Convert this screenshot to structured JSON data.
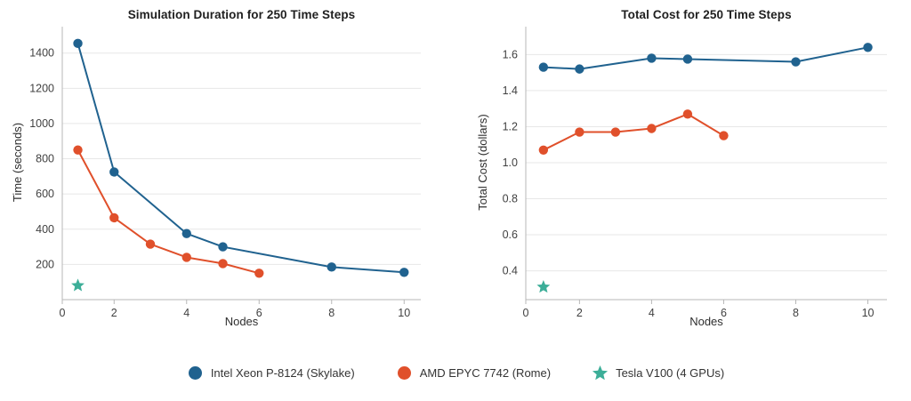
{
  "page": {
    "background": "#ffffff"
  },
  "chart_data": [
    {
      "type": "line",
      "title": "Simulation Duration for 250 Time Steps",
      "xlabel": "Nodes",
      "ylabel": "Time (seconds)",
      "xlim": [
        0.57,
        10.46
      ],
      "ylim": [
        0,
        1550
      ],
      "xticks": [
        0,
        2,
        4,
        6,
        8,
        10
      ],
      "yticks": [
        200,
        400,
        600,
        800,
        1000,
        1200,
        1400
      ],
      "ytick_decimals": 0,
      "grid": "horizontal",
      "legend_position": "bottom-center",
      "series": [
        {
          "name": "Intel Xeon P-8124 (Skylake)",
          "color": "#20628f",
          "marker": "circle",
          "line": true,
          "x": [
            1,
            2,
            4,
            5,
            8,
            10
          ],
          "y": [
            1455,
            725,
            375,
            300,
            185,
            155
          ]
        },
        {
          "name": "AMD EPYC 7742 (Rome)",
          "color": "#e0502b",
          "marker": "circle",
          "line": true,
          "x": [
            1,
            2,
            3,
            4,
            5,
            6
          ],
          "y": [
            850,
            465,
            315,
            240,
            205,
            150
          ]
        },
        {
          "name": "Tesla V100 (4 GPUs)",
          "color": "#3cae98",
          "marker": "star",
          "line": false,
          "x": [
            1
          ],
          "y": [
            80
          ]
        }
      ]
    },
    {
      "type": "line",
      "title": "Total Cost for 250 Time Steps",
      "xlabel": "Nodes",
      "ylabel": "Total Cost (dollars)",
      "xlim": [
        0.51,
        10.53
      ],
      "ylim": [
        0.24,
        1.755
      ],
      "xticks": [
        0,
        2,
        4,
        6,
        8,
        10
      ],
      "yticks": [
        0.4,
        0.6,
        0.8,
        1.0,
        1.2,
        1.4,
        1.6
      ],
      "ytick_decimals": 1,
      "grid": "horizontal",
      "legend_position": "bottom-center",
      "series": [
        {
          "name": "Intel Xeon P-8124 (Skylake)",
          "color": "#20628f",
          "marker": "circle",
          "line": true,
          "x": [
            1,
            2,
            4,
            5,
            8,
            10
          ],
          "y": [
            1.53,
            1.52,
            1.58,
            1.575,
            1.56,
            1.64
          ]
        },
        {
          "name": "AMD EPYC 7742 (Rome)",
          "color": "#e0502b",
          "marker": "circle",
          "line": true,
          "x": [
            1,
            2,
            3,
            4,
            5,
            6
          ],
          "y": [
            1.07,
            1.17,
            1.17,
            1.19,
            1.27,
            1.15
          ]
        },
        {
          "name": "Tesla V100 (4 GPUs)",
          "color": "#3cae98",
          "marker": "star",
          "line": false,
          "x": [
            1
          ],
          "y": [
            0.31
          ]
        }
      ]
    }
  ],
  "legend": {
    "entries": [
      {
        "label": "Intel Xeon P-8124 (Skylake)",
        "marker": "circle",
        "color": "#20628f"
      },
      {
        "label": "AMD EPYC 7742 (Rome)",
        "marker": "circle",
        "color": "#e0502b"
      },
      {
        "label": "Tesla V100 (4 GPUs)",
        "marker": "star",
        "color": "#3cae98"
      }
    ]
  },
  "style_colors": {
    "gridline": "#e7e7e7",
    "axis_line": "#b7b7b7",
    "tick_label": "#414141",
    "title_text": "#1f1f1f"
  }
}
